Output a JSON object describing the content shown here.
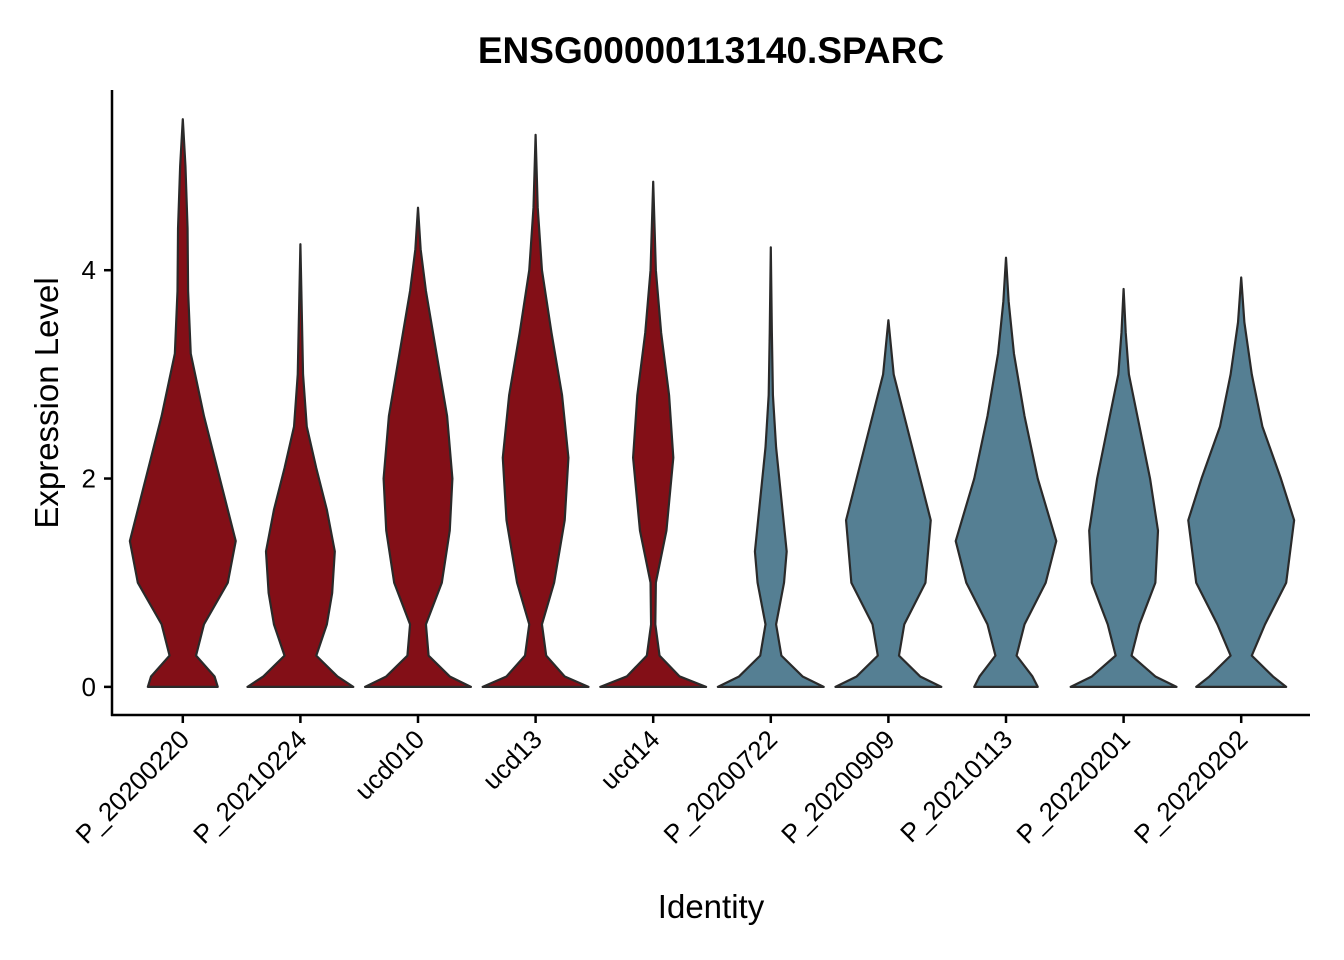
{
  "chart_data": {
    "type": "violin",
    "title": "ENSG00000113140.SPARC",
    "xlabel": "Identity",
    "ylabel": "Expression Level",
    "categories": [
      "P_20200220",
      "P_20210224",
      "ucd010",
      "ucd13",
      "ucd14",
      "P_20200722",
      "P_20200909",
      "P_20210113",
      "P_20220201",
      "P_20220202"
    ],
    "ylim": [
      -0.27,
      5.73
    ],
    "yticks": [
      0,
      2,
      4
    ],
    "violins": [
      {
        "color": "#830f17",
        "y": [
          0,
          0.1,
          0.3,
          0.6,
          1.0,
          1.4,
          1.8,
          2.2,
          2.6,
          3.2,
          3.8,
          4.4,
          5.0,
          5.45
        ],
        "widths": [
          0.66,
          0.6,
          0.25,
          0.4,
          0.85,
          1.0,
          0.8,
          0.6,
          0.4,
          0.15,
          0.1,
          0.09,
          0.05,
          0
        ]
      },
      {
        "color": "#830f17",
        "y": [
          0,
          0.1,
          0.3,
          0.6,
          0.9,
          1.3,
          1.7,
          2.1,
          2.5,
          3.0,
          3.5,
          4.25
        ],
        "widths": [
          1.0,
          0.7,
          0.3,
          0.5,
          0.6,
          0.65,
          0.5,
          0.3,
          0.12,
          0.05,
          0.03,
          0
        ]
      },
      {
        "color": "#830f17",
        "y": [
          0,
          0.1,
          0.3,
          0.6,
          1.0,
          1.5,
          2.0,
          2.6,
          3.2,
          3.8,
          4.2,
          4.6
        ],
        "widths": [
          1.0,
          0.6,
          0.2,
          0.15,
          0.45,
          0.6,
          0.65,
          0.55,
          0.35,
          0.15,
          0.05,
          0
        ]
      },
      {
        "color": "#830f17",
        "y": [
          0,
          0.1,
          0.3,
          0.6,
          1.0,
          1.6,
          2.2,
          2.8,
          3.4,
          4.0,
          4.6,
          5.3
        ],
        "widths": [
          1.0,
          0.55,
          0.2,
          0.12,
          0.35,
          0.55,
          0.62,
          0.5,
          0.3,
          0.12,
          0.04,
          0
        ]
      },
      {
        "color": "#830f17",
        "y": [
          0,
          0.1,
          0.3,
          0.6,
          1.0,
          1.5,
          2.2,
          2.8,
          3.4,
          4.0,
          4.85
        ],
        "widths": [
          1.0,
          0.5,
          0.12,
          0.04,
          0.05,
          0.25,
          0.38,
          0.3,
          0.15,
          0.05,
          0
        ]
      },
      {
        "color": "#557f93",
        "y": [
          0,
          0.1,
          0.3,
          0.6,
          1.0,
          1.3,
          1.8,
          2.3,
          2.8,
          3.4,
          4.22
        ],
        "widths": [
          1.0,
          0.6,
          0.2,
          0.1,
          0.25,
          0.3,
          0.2,
          0.1,
          0.04,
          0.02,
          0
        ]
      },
      {
        "color": "#557f93",
        "y": [
          0,
          0.1,
          0.3,
          0.6,
          1.0,
          1.6,
          2.0,
          2.5,
          3.0,
          3.52
        ],
        "widths": [
          1.0,
          0.6,
          0.2,
          0.3,
          0.7,
          0.8,
          0.6,
          0.35,
          0.1,
          0
        ]
      },
      {
        "color": "#557f93",
        "y": [
          0,
          0.1,
          0.3,
          0.6,
          1.0,
          1.4,
          2.0,
          2.6,
          3.2,
          3.7,
          4.12
        ],
        "widths": [
          0.6,
          0.5,
          0.2,
          0.35,
          0.75,
          0.95,
          0.6,
          0.35,
          0.15,
          0.05,
          0
        ]
      },
      {
        "color": "#557f93",
        "y": [
          0,
          0.1,
          0.3,
          0.6,
          1.0,
          1.5,
          2.0,
          2.5,
          3.0,
          3.4,
          3.82
        ],
        "widths": [
          1.0,
          0.6,
          0.15,
          0.3,
          0.6,
          0.65,
          0.5,
          0.3,
          0.1,
          0.04,
          0
        ]
      },
      {
        "color": "#557f93",
        "y": [
          0,
          0.1,
          0.3,
          0.6,
          1.0,
          1.6,
          2.0,
          2.5,
          3.0,
          3.5,
          3.93
        ],
        "widths": [
          0.85,
          0.6,
          0.2,
          0.45,
          0.85,
          1.0,
          0.75,
          0.4,
          0.2,
          0.06,
          0
        ]
      }
    ]
  }
}
